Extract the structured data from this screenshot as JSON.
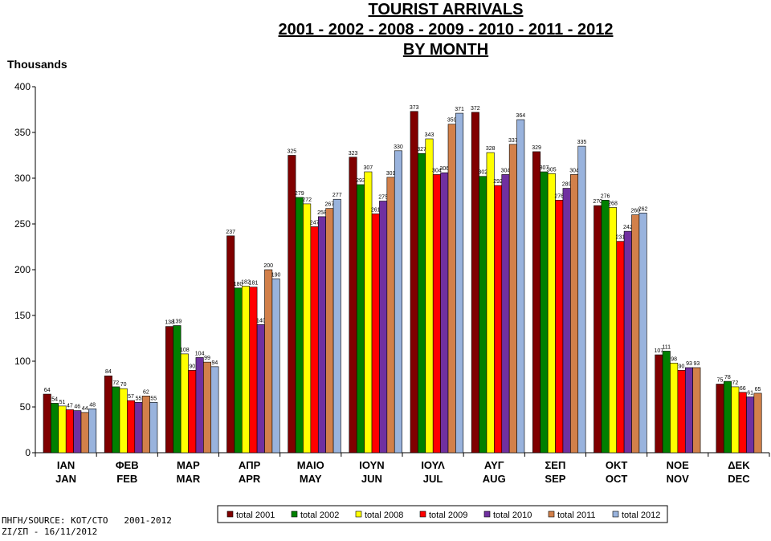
{
  "chart_data": {
    "type": "bar",
    "title_lines": [
      "TOURIST ARRIVALS",
      "2001 - 2002 - 2008 - 2009 - 2010 - 2011 - 2012",
      "BY MONTH"
    ],
    "ylabel": "Thousands",
    "ylim": [
      0,
      400
    ],
    "yticks": [
      0,
      50,
      100,
      150,
      200,
      250,
      300,
      350,
      400
    ],
    "grid": false,
    "legend_position": "bottom",
    "categories": [
      {
        "greek": "ΙΑΝ",
        "english": "JAN"
      },
      {
        "greek": "ΦΕΒ",
        "english": "FEB"
      },
      {
        "greek": "ΜΑΡ",
        "english": "MAR"
      },
      {
        "greek": "ΑΠΡ",
        "english": "APR"
      },
      {
        "greek": "ΜΑΙΟ",
        "english": "MAY"
      },
      {
        "greek": "ΙΟΥΝ",
        "english": "JUN"
      },
      {
        "greek": "ΙΟΥΛ",
        "english": "JUL"
      },
      {
        "greek": "ΑΥΓ",
        "english": "AUG"
      },
      {
        "greek": "ΣΕΠ",
        "english": "SEP"
      },
      {
        "greek": "ΟΚΤ",
        "english": "OCT"
      },
      {
        "greek": "ΝΟΕ",
        "english": "NOV"
      },
      {
        "greek": "ΔΕΚ",
        "english": "DEC"
      }
    ],
    "series": [
      {
        "name": "total 2001",
        "color": "#800000",
        "label_color": "#000000",
        "values": [
          64,
          84,
          138,
          237,
          325,
          323,
          373,
          372,
          329,
          270,
          107,
          75
        ]
      },
      {
        "name": "total 2002",
        "color": "#008000",
        "label_color": "#000000",
        "values": [
          54,
          72,
          139,
          180,
          279,
          293,
          327,
          302,
          307,
          276,
          111,
          78
        ]
      },
      {
        "name": "total 2008",
        "color": "#ffff00",
        "label_color": "#000000",
        "values": [
          51,
          70,
          108,
          182,
          272,
          307,
          343,
          328,
          305,
          268,
          98,
          72
        ]
      },
      {
        "name": "total 2009",
        "color": "#ff0000",
        "label_color": "#ff0000",
        "values": [
          47,
          57,
          90,
          181,
          247,
          261,
          304,
          292,
          276,
          231,
          90,
          66
        ]
      },
      {
        "name": "total 2010",
        "color": "#7030a0",
        "label_color": "#0000ff",
        "values": [
          46,
          55,
          104,
          140,
          258,
          275,
          306,
          304,
          289,
          242,
          93,
          61
        ]
      },
      {
        "name": "total 2011",
        "color": "#d2804a",
        "label_color": "#000000",
        "values": [
          44,
          62,
          99,
          200,
          267,
          301,
          359,
          337,
          304,
          260,
          93,
          65
        ]
      },
      {
        "name": "total 2012",
        "color": "#99b3dd",
        "label_color": "#000000",
        "values": [
          48,
          55,
          94,
          190,
          277,
          330,
          371,
          364,
          335,
          262,
          null,
          null
        ]
      }
    ]
  },
  "source_line": "ΠΗΓΗ/SOURCE: ΚΟΤ/CTO   2001-2012",
  "date_line": "ΖΙ/ΣΠ - 16/11/2012"
}
